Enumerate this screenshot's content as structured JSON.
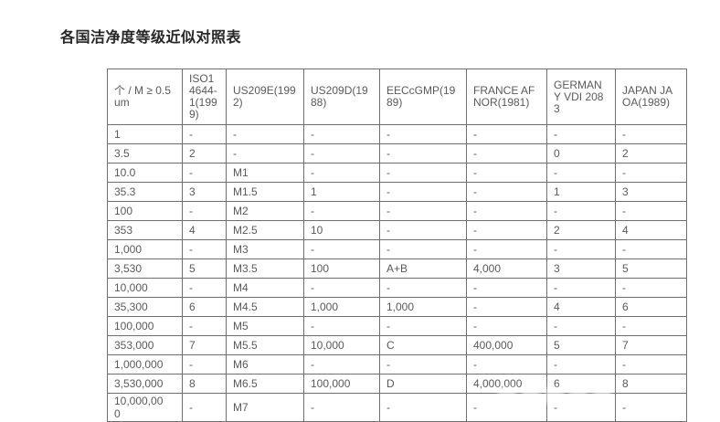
{
  "page": {
    "title": "各国洁净度等级近似对照表"
  },
  "table": {
    "columns": [
      "个 / M ≥ 0.5um",
      "ISO14644-1(1999)",
      "US209E(1992)",
      "US209D(1988)",
      "EECcGMP(1989)",
      "FRANCE AFNOR(1981)",
      "GERMANY VDI 2083",
      "JAPAN JAOA(1989)"
    ],
    "rows": [
      [
        "1",
        "-",
        "-",
        "-",
        "-",
        "-",
        "-",
        "-"
      ],
      [
        "3.5",
        "2",
        "-",
        "-",
        "-",
        "-",
        "0",
        "2"
      ],
      [
        "10.0",
        "-",
        "M1",
        "-",
        "-",
        "-",
        "-",
        "-"
      ],
      [
        "35.3",
        "3",
        "M1.5",
        "1",
        "-",
        "-",
        "1",
        "3"
      ],
      [
        "100",
        "-",
        "M2",
        "-",
        "-",
        "-",
        "-",
        "-"
      ],
      [
        "353",
        "4",
        "M2.5",
        "10",
        "-",
        "-",
        "2",
        "4"
      ],
      [
        "1,000",
        "-",
        "M3",
        "-",
        "-",
        "-",
        "-",
        "-"
      ],
      [
        "3,530",
        "5",
        "M3.5",
        "100",
        "A+B",
        "4,000",
        "3",
        "5"
      ],
      [
        "10,000",
        "-",
        "M4",
        "-",
        "-",
        "-",
        "-",
        "-"
      ],
      [
        "35,300",
        "6",
        "M4.5",
        "1,000",
        "1,000",
        "-",
        "4",
        "6"
      ],
      [
        "100,000",
        "-",
        "M5",
        "-",
        "-",
        "-",
        "-",
        "-"
      ],
      [
        "353,000",
        "7",
        "M5.5",
        "10,000",
        "C",
        "400,000",
        "5",
        "7"
      ],
      [
        "1,000,000",
        "-",
        "M6",
        "-",
        "-",
        "-",
        "-",
        "-"
      ],
      [
        "3,530,000",
        "8",
        "M6.5",
        "100,000",
        "D",
        "4,000,000",
        "6",
        "8"
      ],
      [
        "10,000,000",
        "-",
        "M7",
        "-",
        "-",
        "-",
        "-",
        "-"
      ]
    ]
  },
  "colors": {
    "background": "#ffffff",
    "title_text": "#262626",
    "cell_text": "#595959",
    "table_border": "#6f6f6f"
  }
}
